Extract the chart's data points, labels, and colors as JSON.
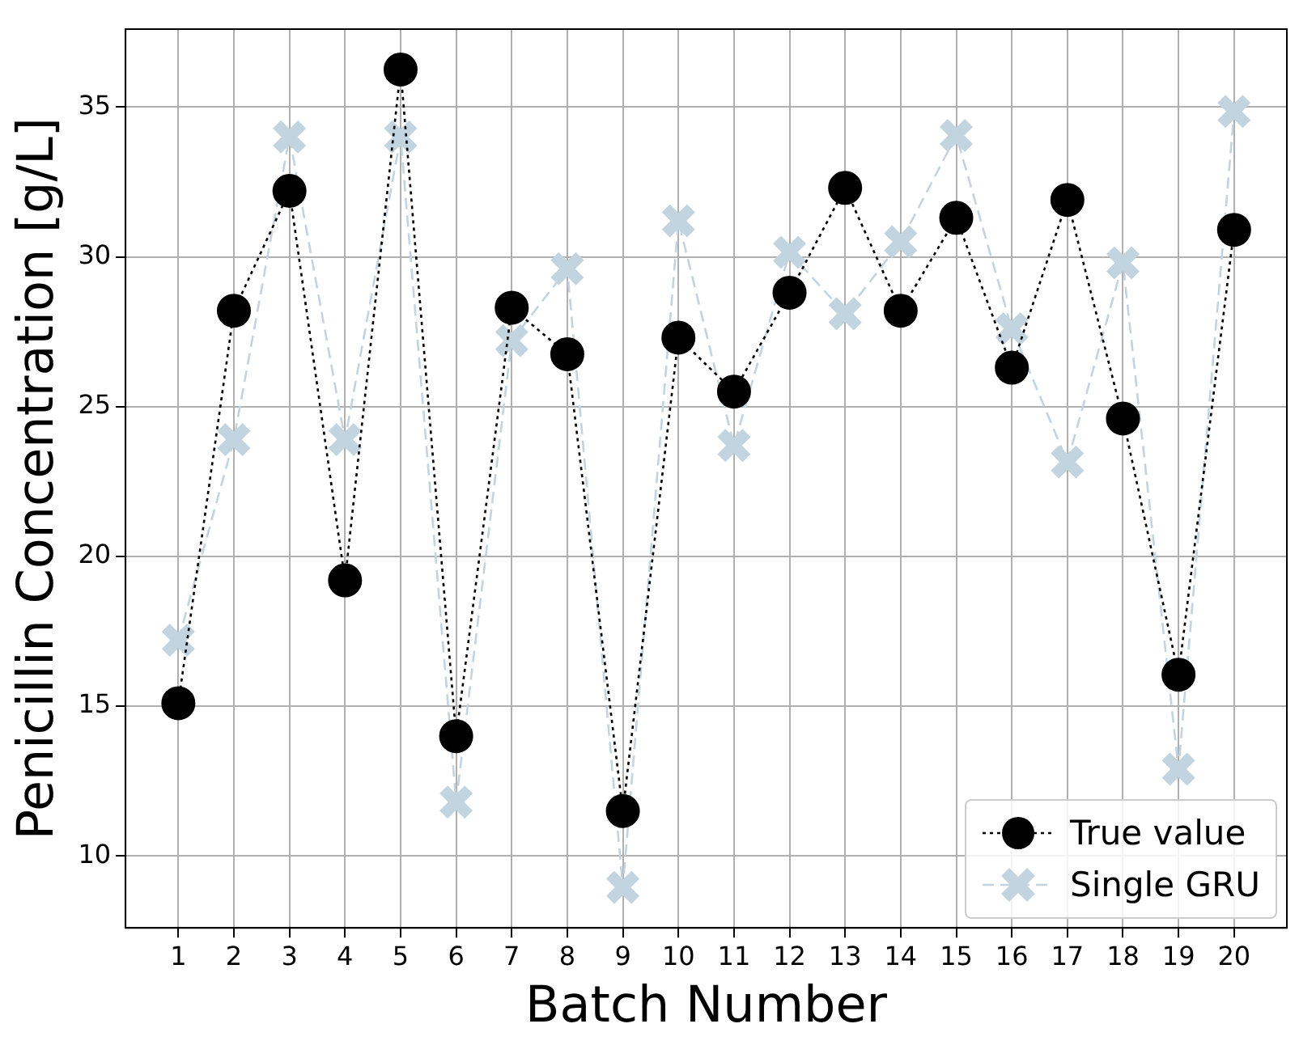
{
  "chart_data": {
    "type": "line",
    "xlabel": "Batch Number",
    "ylabel": "Penicillin Concentration [g/L]",
    "x": [
      1,
      2,
      3,
      4,
      5,
      6,
      7,
      8,
      9,
      10,
      11,
      12,
      13,
      14,
      15,
      16,
      17,
      18,
      19,
      20
    ],
    "xlim": [
      0.05,
      20.95
    ],
    "xticks": [
      1,
      2,
      3,
      4,
      5,
      6,
      7,
      8,
      9,
      10,
      11,
      12,
      13,
      14,
      15,
      16,
      17,
      18,
      19,
      20
    ],
    "ylim": [
      7.6,
      37.6
    ],
    "yticks": [
      10,
      15,
      20,
      25,
      30,
      35
    ],
    "grid": true,
    "legend": "bottom right",
    "series": [
      {
        "name": "True value",
        "color": "#000000",
        "marker": "circle",
        "line_style": "dotted",
        "values": [
          15.1,
          28.2,
          32.2,
          19.2,
          36.25,
          14.0,
          28.3,
          26.75,
          11.5,
          27.3,
          25.5,
          28.8,
          32.3,
          28.2,
          31.3,
          26.3,
          31.9,
          24.6,
          16.05,
          30.9
        ]
      },
      {
        "name": "Single GRU",
        "color": "#c2d4df",
        "marker": "cross",
        "line_style": "dashed",
        "values": [
          17.2,
          23.9,
          34.0,
          23.9,
          34.0,
          11.8,
          27.2,
          29.6,
          8.95,
          31.2,
          23.7,
          30.15,
          28.1,
          30.5,
          34.05,
          27.6,
          23.15,
          29.8,
          12.9,
          34.85
        ]
      }
    ]
  }
}
